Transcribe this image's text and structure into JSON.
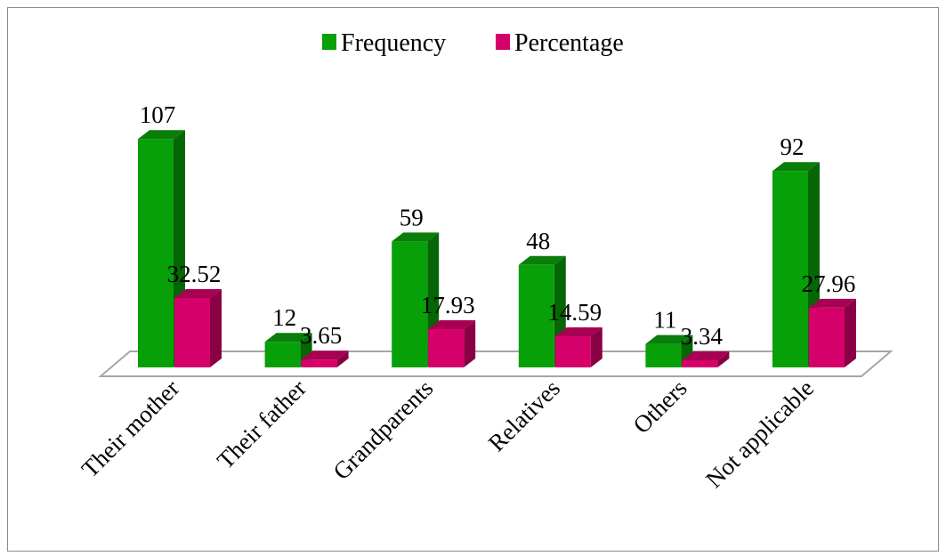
{
  "chart_data": {
    "type": "bar",
    "categories": [
      "Their mother",
      "Their father",
      "Grandparents",
      "Relatives",
      "Others",
      "Not applicable"
    ],
    "series": [
      {
        "name": "Frequency",
        "values": [
          107,
          12,
          59,
          48,
          11,
          92
        ],
        "labels": [
          "107",
          "12",
          "59",
          "48",
          "11",
          "92"
        ],
        "color": "#08a008",
        "side_color": "#056605",
        "top_color": "#0a7d0a"
      },
      {
        "name": "Percentage",
        "values": [
          32.52,
          3.65,
          17.93,
          14.59,
          3.34,
          27.96
        ],
        "labels": [
          "32.52",
          "3.65",
          "17.93",
          "14.59",
          "3.34",
          "27.96"
        ],
        "color": "#d6006a",
        "side_color": "#8a0044",
        "top_color": "#a80052"
      }
    ],
    "ylim": [
      0,
      110
    ],
    "grid": false,
    "legend_position": "top",
    "three_d": true
  }
}
